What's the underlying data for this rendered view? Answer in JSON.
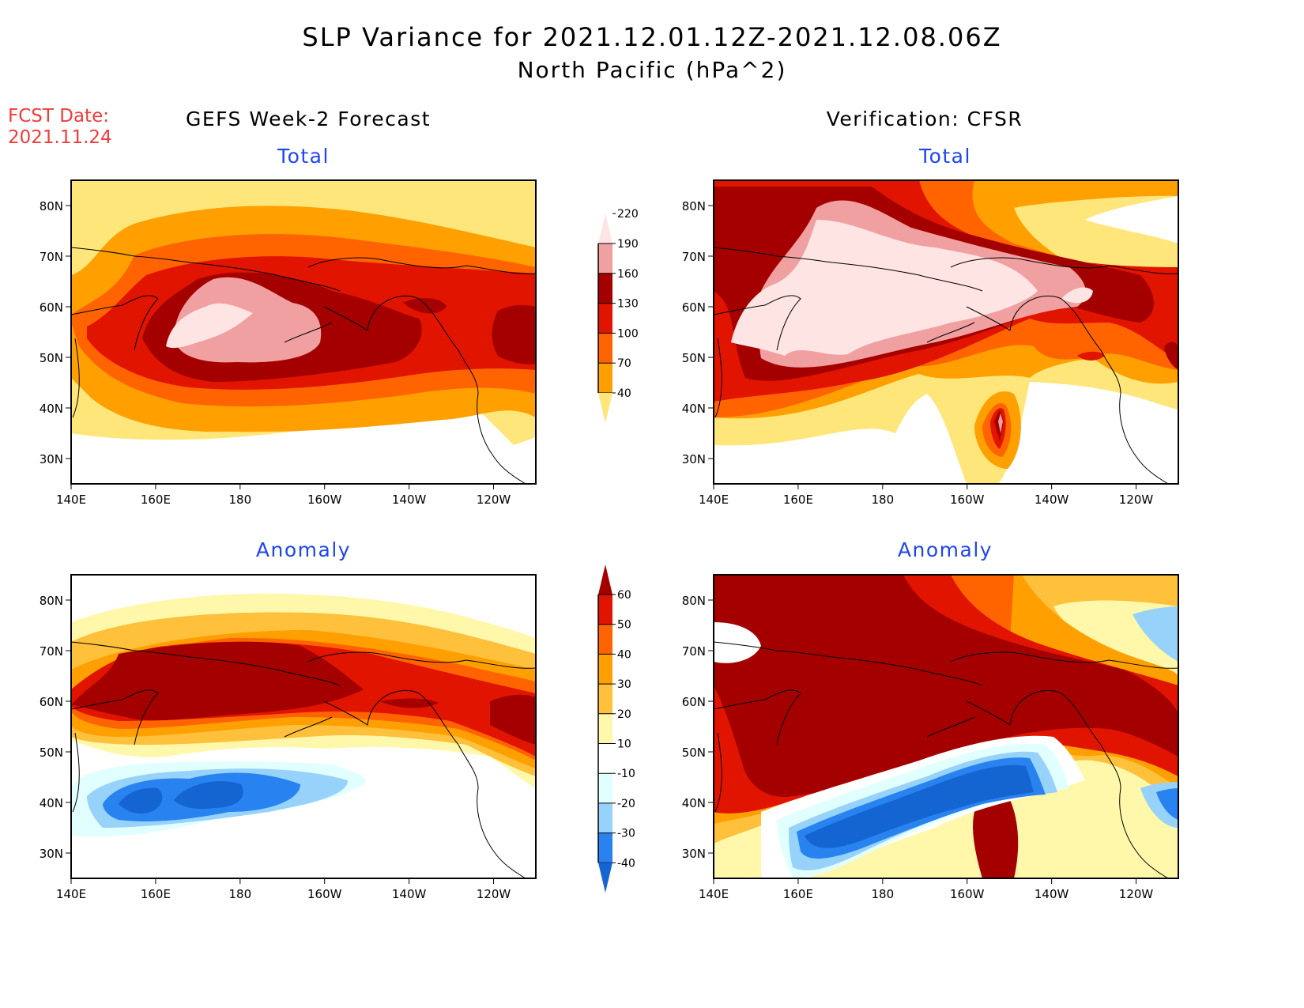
{
  "header": {
    "title": "SLP Variance for 2021.12.01.12Z-2021.12.08.06Z",
    "subtitle": "North Pacific (hPa^2)",
    "fcst_label": "FCST Date:",
    "fcst_date": "2021.11.24",
    "left_column_title": "GEFS Week-2 Forecast",
    "right_column_title": "Verification: CFSR"
  },
  "colors": {
    "title_text": "#000000",
    "fcst_text": "#f03c3c",
    "panel_title_text": "#1e46f0"
  },
  "chart_data": [
    {
      "type": "heatmap",
      "name": "gefs-total",
      "title": "Total",
      "xlabel": "",
      "ylabel": "",
      "x_ticks": [
        "140E",
        "160E",
        "180",
        "160W",
        "140W",
        "120W"
      ],
      "y_ticks": [
        "30N",
        "40N",
        "50N",
        "60N",
        "70N",
        "80N"
      ],
      "xlim": [
        140,
        250
      ],
      "ylim": [
        25,
        85
      ],
      "grid": false,
      "description_values": "Max variance >220 centered near 55N 175E; band of 130-190 from 160E to 130W along 50-65N; values <40 south of 35N"
    },
    {
      "type": "heatmap",
      "name": "cfsr-total",
      "title": "Total",
      "x_ticks": [
        "140E",
        "160E",
        "180",
        "160W",
        "140W",
        "120W"
      ],
      "y_ticks": [
        "30N",
        "40N",
        "50N",
        "60N",
        "70N",
        "80N"
      ],
      "xlim": [
        140,
        250
      ],
      "ylim": [
        25,
        85
      ],
      "grid": false
    },
    {
      "type": "heatmap",
      "name": "gefs-anomaly",
      "title": "Anomaly",
      "x_ticks": [
        "140E",
        "160E",
        "180",
        "160W",
        "140W",
        "120W"
      ],
      "y_ticks": [
        "30N",
        "40N",
        "50N",
        "60N",
        "70N",
        "80N"
      ],
      "xlim": [
        140,
        250
      ],
      "ylim": [
        25,
        85
      ],
      "grid": false
    },
    {
      "type": "heatmap",
      "name": "cfsr-anomaly",
      "title": "Anomaly",
      "x_ticks": [
        "140E",
        "160E",
        "180",
        "160W",
        "140W",
        "120W"
      ],
      "y_ticks": [
        "30N",
        "40N",
        "50N",
        "60N",
        "70N",
        "80N"
      ],
      "xlim": [
        140,
        250
      ],
      "ylim": [
        25,
        85
      ],
      "grid": false
    }
  ],
  "legends": {
    "total": {
      "levels": [
        "40",
        "70",
        "100",
        "130",
        "160",
        "190",
        "220"
      ],
      "colors": [
        "#ffe67a",
        "#ffa000",
        "#ff6400",
        "#e11400",
        "#a50000",
        "#f0a0a0",
        "#ffe4e4"
      ]
    },
    "anomaly": {
      "levels": [
        "-40",
        "-30",
        "-20",
        "-10",
        "10",
        "20",
        "30",
        "40",
        "50",
        "60"
      ],
      "colors": [
        "#1464d2",
        "#2882f0",
        "#96d2fa",
        "#e1ffff",
        "#ffffff",
        "#fff8aa",
        "#ffc03c",
        "#ffa000",
        "#ff6400",
        "#e11400",
        "#a50000"
      ]
    }
  }
}
